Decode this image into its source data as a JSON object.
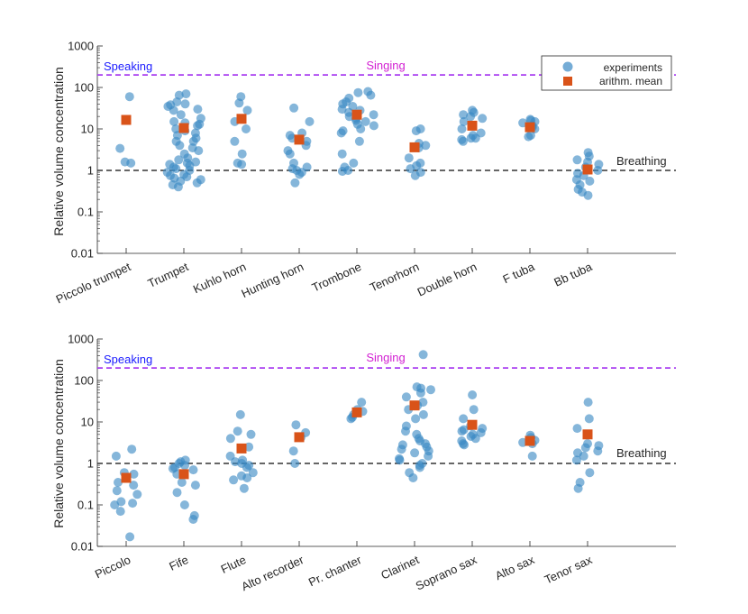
{
  "chart_data": [
    {
      "type": "scatter",
      "panel": "brass",
      "ylabel": "Relative volume concentration",
      "yscale": "log",
      "ylim": [
        0.01,
        1000
      ],
      "yticks": [
        0.01,
        0.1,
        1,
        10,
        100,
        1000
      ],
      "ytick_labels": [
        "0.01",
        "0.1",
        "1",
        "10",
        "100",
        "1000"
      ],
      "reference_lines": [
        {
          "label": "Speaking",
          "y": 200,
          "color": "#1a1aff",
          "style": "dashed"
        },
        {
          "label": "Singing",
          "y": 200,
          "color": "#d21fd2",
          "style": "dashed",
          "line_color": "#a83cf0"
        },
        {
          "label": "Breathing",
          "y": 1,
          "color": "#262626",
          "style": "dashed",
          "line_color": "#333333"
        }
      ],
      "legend": {
        "position": "top-right",
        "entries": [
          "experiments",
          "arithm. mean"
        ]
      },
      "categories": [
        "Piccolo trumpet",
        "Trumpet",
        "Kuhlo horn",
        "Hunting horn",
        "Trombone",
        "Tenorhorn",
        "Double horn",
        "F tuba",
        "Bb tuba"
      ],
      "series": [
        {
          "name": "experiments",
          "values": [
            [
              60,
              3.4,
              1.6,
              1.5
            ],
            [
              70,
              65,
              45,
              40,
              38,
              35,
              30,
              28,
              22,
              18,
              15,
              14,
              13,
              12,
              10,
              9,
              8,
              7,
              6,
              5,
              5,
              4,
              3.5,
              3,
              2.5,
              2,
              1.8,
              1.6,
              1.5,
              1.4,
              1.3,
              1.2,
              1.1,
              1,
              0.9,
              0.8,
              0.75,
              0.7,
              0.65,
              0.6,
              0.55,
              0.5,
              0.45,
              0.4
            ],
            [
              60,
              42,
              28,
              15,
              10,
              5,
              2.5,
              1.5,
              1.4
            ],
            [
              32,
              15,
              8,
              7,
              6,
              5,
              4,
              3,
              2.5,
              1.5,
              1.2,
              1.1,
              1,
              0.9,
              0.8,
              0.5
            ],
            [
              80,
              75,
              65,
              55,
              45,
              40,
              35,
              30,
              28,
              25,
              22,
              20,
              18,
              16,
              15,
              13,
              12,
              10,
              9,
              8,
              5,
              2.5,
              1.5,
              1.2,
              1,
              0.95
            ],
            [
              10,
              9,
              4.5,
              4,
              3.5,
              2,
              1.5,
              1.3,
              1.1,
              0.9,
              0.75
            ],
            [
              28,
              25,
              22,
              20,
              18,
              15,
              10,
              8,
              7,
              6,
              6,
              5.5,
              5
            ],
            [
              17,
              16,
              15,
              14,
              12,
              11,
              10,
              7,
              6.5
            ],
            [
              2.7,
              2.2,
              1.8,
              1.6,
              1.4,
              1.2,
              1,
              0.85,
              0.75,
              0.6,
              0.55,
              0.45,
              0.35,
              0.3,
              0.25
            ]
          ]
        },
        {
          "name": "arithm. mean",
          "values": [
            16.5,
            10.5,
            17.5,
            5.5,
            22,
            3.6,
            12,
            11,
            1.05
          ]
        }
      ]
    },
    {
      "type": "scatter",
      "panel": "woodwind",
      "ylabel": "Relative volume concentration",
      "yscale": "log",
      "ylim": [
        0.01,
        1000
      ],
      "yticks": [
        0.01,
        0.1,
        1,
        10,
        100,
        1000
      ],
      "ytick_labels": [
        "0.01",
        "0.1",
        "1",
        "10",
        "100",
        "1000"
      ],
      "reference_lines": [
        {
          "label": "Speaking",
          "y": 200,
          "color": "#1a1aff",
          "style": "dashed"
        },
        {
          "label": "Singing",
          "y": 200,
          "color": "#d21fd2",
          "style": "dashed",
          "line_color": "#a83cf0"
        },
        {
          "label": "Breathing",
          "y": 1,
          "color": "#262626",
          "style": "dashed",
          "line_color": "#333333"
        }
      ],
      "categories": [
        "Piccolo",
        "Fife",
        "Flute",
        "Alto recorder",
        "Pr. chanter",
        "Clarinet",
        "Soprano sax",
        "Alto sax",
        "Tenor sax"
      ],
      "series": [
        {
          "name": "experiments",
          "values": [
            [
              2.2,
              1.5,
              0.6,
              0.55,
              0.35,
              0.3,
              0.22,
              0.18,
              0.12,
              0.11,
              0.1,
              0.07,
              0.017
            ],
            [
              1.2,
              1.1,
              1,
              0.9,
              0.8,
              0.75,
              0.7,
              0.55,
              0.35,
              0.3,
              0.2,
              0.1,
              0.055,
              0.045
            ],
            [
              15,
              6,
              5,
              4,
              2.5,
              1.5,
              1.2,
              1.1,
              1,
              0.9,
              0.8,
              0.6,
              0.5,
              0.45,
              0.4,
              0.25
            ],
            [
              8.5,
              5.5,
              4.2,
              2,
              1
            ],
            [
              30,
              20,
              18,
              15,
              13,
              12
            ],
            [
              420,
              70,
              65,
              60,
              50,
              40,
              30,
              25,
              20,
              15,
              12,
              8,
              6,
              5,
              4,
              3.5,
              3,
              2.8,
              2.5,
              2.2,
              2,
              1.8,
              1.5,
              1.3,
              1.2,
              1,
              0.9,
              0.8,
              0.6,
              0.45
            ],
            [
              45,
              20,
              12,
              8,
              7,
              6.5,
              6,
              5.5,
              5,
              4.5,
              4,
              3.5,
              3,
              2.8
            ],
            [
              4.8,
              4.2,
              3.6,
              3.2,
              3,
              1.5
            ],
            [
              30,
              12,
              7,
              3,
              2.7,
              2.4,
              2,
              1.8,
              1.5,
              1.2,
              0.6,
              0.35,
              0.25
            ]
          ]
        },
        {
          "name": "arithm. mean",
          "values": [
            0.45,
            0.55,
            2.3,
            4.3,
            17,
            25,
            8.5,
            3.5,
            5.0
          ]
        }
      ]
    }
  ],
  "style": {
    "experiment_color": "#3a89c4",
    "mean_color": "#d95319"
  }
}
